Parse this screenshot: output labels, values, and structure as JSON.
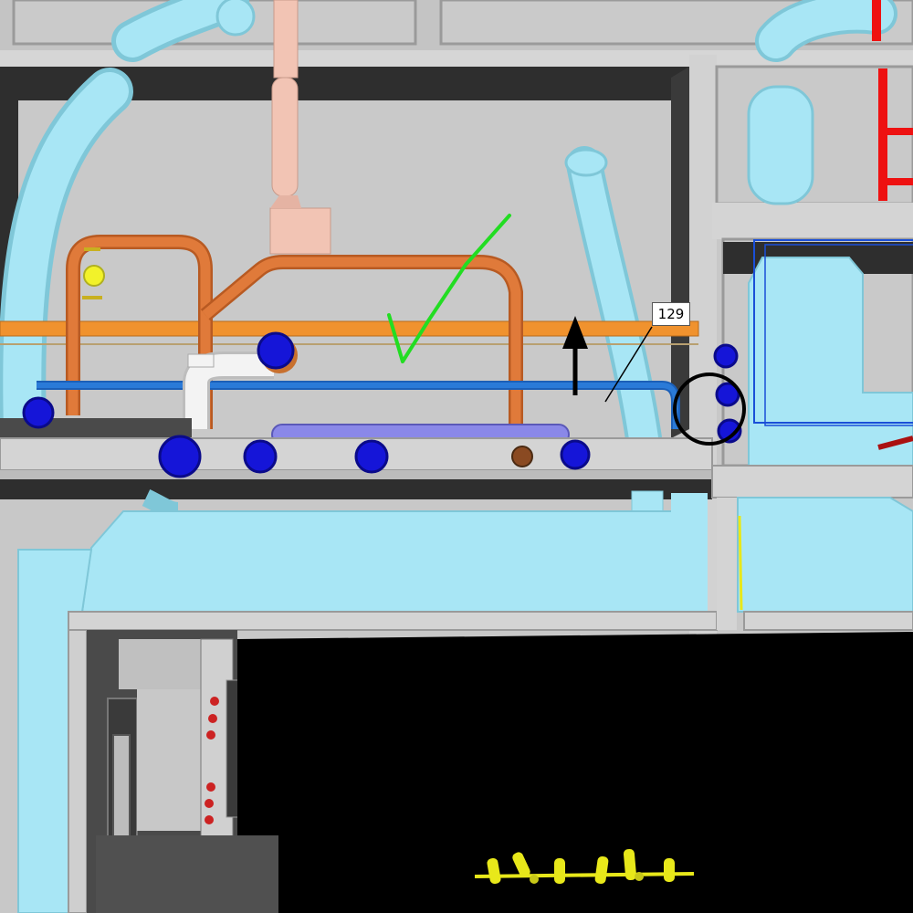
{
  "scene": {
    "annotation_tag": {
      "label": "129"
    },
    "markup": {
      "checkmark": {
        "color": "#22dd22"
      },
      "direction_arrow": {
        "color": "#000000",
        "direction": "up"
      },
      "highlight_circle": {
        "color": "#000000"
      }
    },
    "colors": {
      "duct": "#a8e6f5",
      "duct_shadow": "#7fc7d8",
      "copper_pipe": "#e07a3a",
      "orange_pipe": "#f0922e",
      "water_line": "#2a7ad8",
      "valve": "#1515d8",
      "sprinkler_main": "#ee1111",
      "wall": "#c7c7c7",
      "wall_top": "#d9d9d9",
      "ceiling_void": "#2d2d2d",
      "vent_stack": "#f2c4b4",
      "sprinkler_heads": "#e8e81a"
    }
  }
}
